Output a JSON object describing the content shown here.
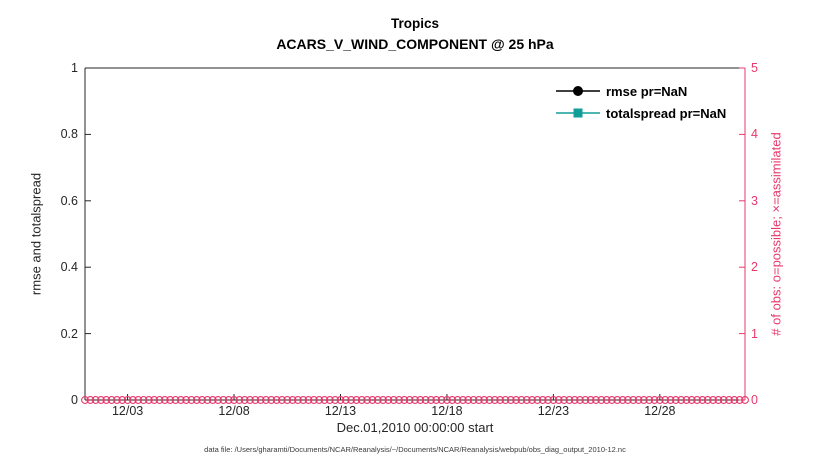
{
  "chart_data": {
    "type": "line",
    "title": "Tropics",
    "subtitle": "ACARS_V_WIND_COMPONENT @ 25 hPa",
    "footnote": "data file: /Users/gharamti/Documents/NCAR/Reanalysis/~/Documents/NCAR/Reanalysis/webpub/obs_diag_output_2010-12.nc",
    "x_axis": {
      "label": "Dec.01,2010 00:00:00 start",
      "tick_labels": [
        "12/03",
        "12/08",
        "12/13",
        "12/18",
        "12/23",
        "12/28"
      ],
      "tick_days": [
        3,
        8,
        13,
        18,
        23,
        28
      ],
      "range_days": [
        1,
        32
      ]
    },
    "left_axis": {
      "label": "rmse and totalspread",
      "ticks": [
        0,
        0.2,
        0.4,
        0.6,
        0.8,
        1
      ],
      "tick_labels": [
        "0",
        "0.2",
        "0.4",
        "0.6",
        "0.8",
        "1"
      ],
      "range": [
        0,
        1
      ],
      "color": "#000000"
    },
    "right_axis": {
      "label": "# of obs: o=possible; ×=assimilated",
      "ticks": [
        0,
        1,
        2,
        3,
        4,
        5
      ],
      "tick_labels": [
        "0",
        "1",
        "2",
        "3",
        "4",
        "5"
      ],
      "range": [
        0,
        5
      ],
      "color": "#e8386d"
    },
    "series": [
      {
        "name": "rmse pr=NaN",
        "color": "#000000",
        "marker": "circle",
        "pr": "NaN",
        "values": []
      },
      {
        "name": "totalspread pr=NaN",
        "color": "#119e98",
        "marker": "square",
        "pr": "NaN",
        "values": []
      }
    ],
    "obs_counts": {
      "possible": {
        "marker": "o",
        "color": "#e8386d",
        "value_per_time": 0,
        "n_times": 125
      },
      "assimilated": {
        "marker": "×",
        "color": "#e8386d",
        "value_per_time": 0
      }
    },
    "legend": {
      "position": "top-right-inside",
      "entries": [
        "rmse pr=NaN",
        "totalspread pr=NaN"
      ]
    }
  }
}
